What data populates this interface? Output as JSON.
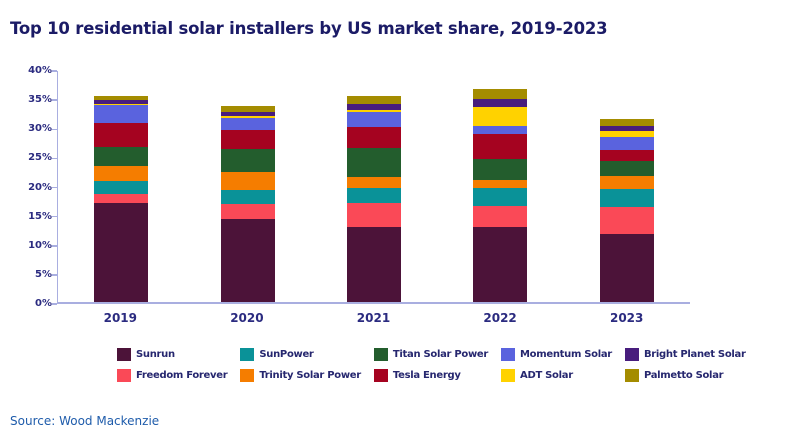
{
  "title": "Top 10 residential solar installers by US market share, 2019-2023",
  "source": "Source: Wood Mackenzie",
  "colors": {
    "title_text": "#1b1b66",
    "axis_line": "#a9aee0",
    "axis_label_text": "#2b2b80",
    "legend_text": "#26276f",
    "source_text": "#1f5cab"
  },
  "chart_data": {
    "type": "bar",
    "stacked": true,
    "title": "Top 10 residential solar installers by US market share, 2019-2023",
    "xlabel": "",
    "ylabel": "",
    "ylim": [
      0,
      40
    ],
    "yticks": [
      0,
      5,
      10,
      15,
      20,
      25,
      30,
      35,
      40
    ],
    "ytick_labels": [
      "0%",
      "5%",
      "10%",
      "15%",
      "20%",
      "25%",
      "30%",
      "35%",
      "40%"
    ],
    "grid": false,
    "legend_position": "bottom",
    "categories": [
      "2019",
      "2020",
      "2021",
      "2022",
      "2023"
    ],
    "series": [
      {
        "name": "Sunrun",
        "color": "#4c1339",
        "values": [
          17.0,
          14.2,
          12.9,
          12.9,
          11.7
        ]
      },
      {
        "name": "Freedom Forever",
        "color": "#fa4957",
        "values": [
          1.6,
          2.7,
          4.1,
          3.5,
          4.6
        ]
      },
      {
        "name": "SunPower",
        "color": "#0a9298",
        "values": [
          2.1,
          2.4,
          2.6,
          3.1,
          3.1
        ]
      },
      {
        "name": "Trinity Solar Power",
        "color": "#f57d00",
        "values": [
          2.6,
          3.0,
          1.8,
          1.4,
          2.2
        ]
      },
      {
        "name": "Titan Solar Power",
        "color": "#235d2d",
        "values": [
          3.3,
          4.0,
          5.1,
          3.7,
          2.6
        ]
      },
      {
        "name": "Tesla Energy",
        "color": "#a50320",
        "values": [
          4.2,
          3.3,
          3.5,
          4.2,
          1.9
        ]
      },
      {
        "name": "Momentum Solar",
        "color": "#5a63de",
        "values": [
          3.0,
          2.0,
          2.6,
          1.5,
          2.3
        ]
      },
      {
        "name": "ADT Solar",
        "color": "#ffd200",
        "values": [
          0.2,
          0.3,
          0.4,
          3.2,
          1.0
        ]
      },
      {
        "name": "Bright Planet Solar",
        "color": "#481d7d",
        "values": [
          0.7,
          0.8,
          1.0,
          1.4,
          0.9
        ]
      },
      {
        "name": "Palmetto Solar",
        "color": "#a48c00",
        "values": [
          0.6,
          1.0,
          1.3,
          1.7,
          1.1
        ]
      }
    ],
    "legend_rows": [
      [
        "Sunrun",
        "SunPower",
        "Titan Solar Power",
        "Momentum Solar",
        "Bright Planet Solar"
      ],
      [
        "Freedom Forever",
        "Trinity Solar Power",
        "Tesla Energy",
        "ADT Solar",
        "Palmetto Solar"
      ]
    ]
  }
}
